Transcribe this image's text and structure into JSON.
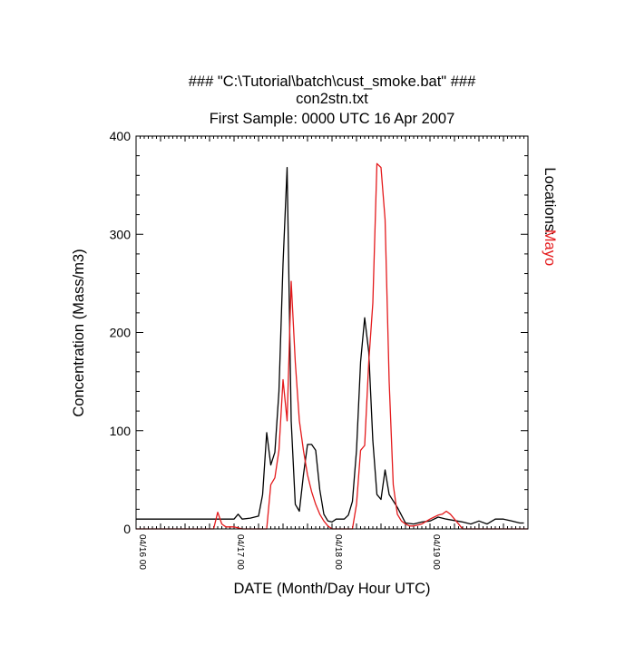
{
  "title_lines": [
    "### \"C:\\Tutorial\\batch\\cust_smoke.bat\" ###",
    "con2stn.txt",
    "First Sample: 0000 UTC 16 Apr 2007"
  ],
  "locations_label": "Locations:",
  "colors": {
    "axis": "#000000",
    "series_black": "#000000",
    "series_red": "#e41a1c"
  },
  "chart_data": {
    "type": "line",
    "title": "### \"C:\\Tutorial\\batch\\cust_smoke.bat\" ### / con2stn.txt / First Sample: 0000 UTC 16 Apr 2007",
    "xlabel": "DATE (Month/Day Hour UTC)",
    "ylabel": "Concentration (Mass/m3)",
    "x_unit": "hours after 04/16 00 UTC",
    "xlim": [
      0,
      96
    ],
    "ylim": [
      0,
      400
    ],
    "yticks": [
      0,
      100,
      200,
      300,
      400
    ],
    "xticks": [
      {
        "x": 0,
        "label": "04/16 00"
      },
      {
        "x": 24,
        "label": "04/17 00"
      },
      {
        "x": 48,
        "label": "04/18 00"
      },
      {
        "x": 72,
        "label": "04/19 00"
      }
    ],
    "grid": false,
    "legend": "right-vertical",
    "series": [
      {
        "name": "",
        "color": "#000000",
        "points": [
          [
            0,
            10
          ],
          [
            24,
            10
          ],
          [
            25,
            15
          ],
          [
            26,
            10
          ],
          [
            28,
            11
          ],
          [
            30,
            13
          ],
          [
            31,
            35
          ],
          [
            32,
            98
          ],
          [
            33,
            65
          ],
          [
            34,
            78
          ],
          [
            35,
            140
          ],
          [
            36,
            270
          ],
          [
            37,
            368
          ],
          [
            38,
            110
          ],
          [
            39,
            25
          ],
          [
            40,
            18
          ],
          [
            41,
            55
          ],
          [
            42,
            86
          ],
          [
            43,
            86
          ],
          [
            44,
            80
          ],
          [
            45,
            40
          ],
          [
            46,
            15
          ],
          [
            47,
            8
          ],
          [
            48,
            7
          ],
          [
            49,
            10
          ],
          [
            51,
            10
          ],
          [
            52,
            14
          ],
          [
            53,
            28
          ],
          [
            54,
            80
          ],
          [
            55,
            170
          ],
          [
            56,
            215
          ],
          [
            57,
            180
          ],
          [
            58,
            90
          ],
          [
            59,
            35
          ],
          [
            60,
            30
          ],
          [
            61,
            60
          ],
          [
            62,
            35
          ],
          [
            64,
            22
          ],
          [
            65,
            14
          ],
          [
            66,
            6
          ],
          [
            68,
            5
          ],
          [
            70,
            7
          ],
          [
            72,
            8
          ],
          [
            74,
            12
          ],
          [
            76,
            10
          ],
          [
            80,
            7
          ],
          [
            82,
            5
          ],
          [
            84,
            8
          ],
          [
            86,
            5
          ],
          [
            88,
            10
          ],
          [
            90,
            10
          ],
          [
            92,
            8
          ],
          [
            94,
            6
          ],
          [
            95,
            6
          ]
        ]
      },
      {
        "name": "Mayo",
        "color": "#e41a1c",
        "points": [
          [
            0,
            0
          ],
          [
            19,
            0
          ],
          [
            20,
            17
          ],
          [
            21,
            5
          ],
          [
            22,
            2
          ],
          [
            24,
            2
          ],
          [
            26,
            0
          ],
          [
            32,
            0
          ],
          [
            33,
            45
          ],
          [
            34,
            52
          ],
          [
            35,
            80
          ],
          [
            36,
            152
          ],
          [
            37,
            110
          ],
          [
            38,
            252
          ],
          [
            39,
            170
          ],
          [
            40,
            110
          ],
          [
            41,
            80
          ],
          [
            42,
            55
          ],
          [
            43,
            38
          ],
          [
            44,
            25
          ],
          [
            45,
            15
          ],
          [
            46,
            8
          ],
          [
            47,
            3
          ],
          [
            48,
            0
          ],
          [
            50,
            0
          ],
          [
            53,
            0
          ],
          [
            54,
            25
          ],
          [
            55,
            80
          ],
          [
            56,
            85
          ],
          [
            57,
            170
          ],
          [
            58,
            230
          ],
          [
            59,
            372
          ],
          [
            60,
            368
          ],
          [
            61,
            315
          ],
          [
            62,
            150
          ],
          [
            63,
            45
          ],
          [
            64,
            15
          ],
          [
            65,
            8
          ],
          [
            66,
            5
          ],
          [
            67,
            3
          ],
          [
            68,
            3
          ],
          [
            69,
            4
          ],
          [
            70,
            5
          ],
          [
            72,
            10
          ],
          [
            73,
            12
          ],
          [
            74,
            14
          ],
          [
            75,
            15
          ],
          [
            76,
            18
          ],
          [
            77,
            15
          ],
          [
            78,
            10
          ],
          [
            79,
            5
          ],
          [
            80,
            0
          ],
          [
            96,
            0
          ]
        ]
      }
    ]
  }
}
